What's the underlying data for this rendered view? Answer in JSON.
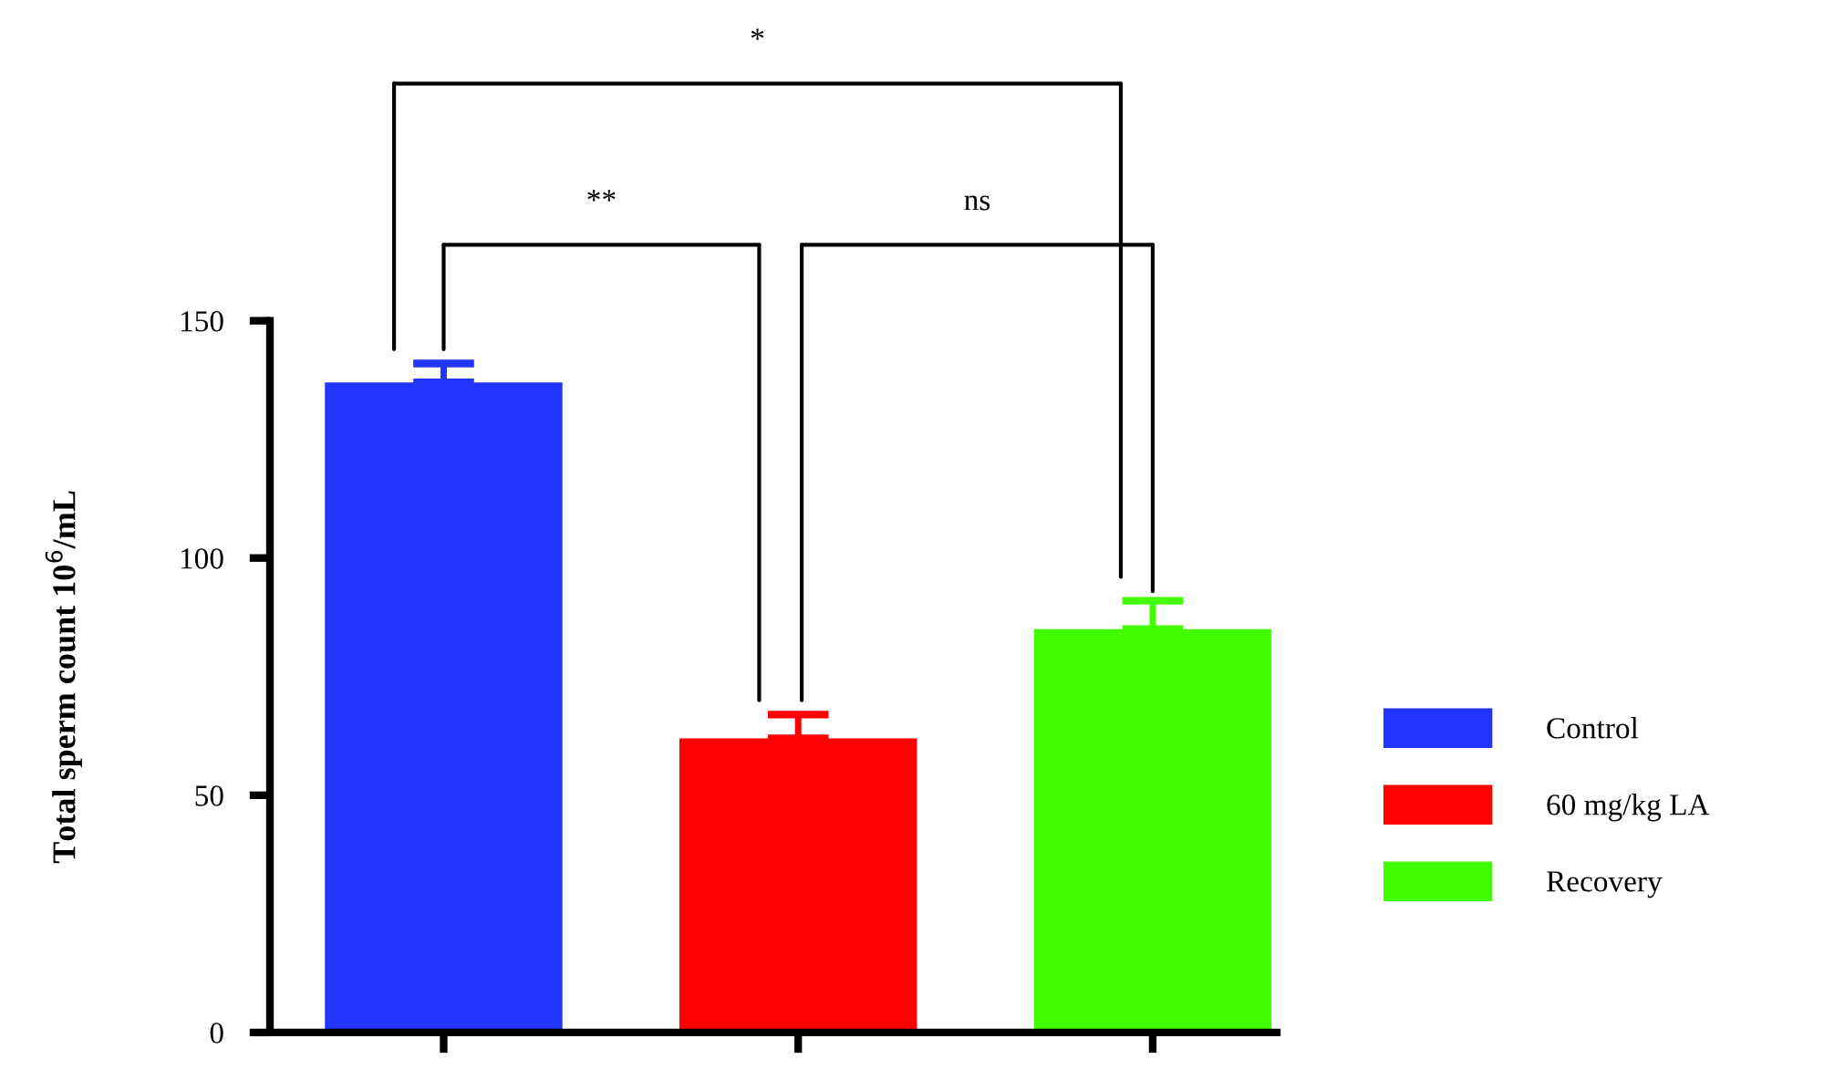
{
  "chart_data": {
    "type": "bar",
    "ylabel": "Total sperm count 10$^{6}$/mL",
    "categories": [
      null,
      null,
      null
    ],
    "series": [
      {
        "name": "Control",
        "color": "#2235ff",
        "values": [
          137,
          null,
          null
        ],
        "errors": [
          [
            137,
            141
          ],
          null,
          null
        ]
      },
      {
        "name": "60 mg/kg LA",
        "color": "#ff0000",
        "values": [
          null,
          62,
          null
        ],
        "errors": [
          null,
          [
            62,
            67
          ],
          null
        ]
      },
      {
        "name": "Recovery",
        "color": "#40ff00",
        "values": [
          null,
          null,
          85
        ],
        "errors": [
          null,
          null,
          [
            85,
            91
          ]
        ]
      }
    ],
    "ylim": [
      0,
      150
    ],
    "yticks": [
      0,
      50,
      100,
      150
    ],
    "grid": false,
    "legend": "right",
    "annotations": [
      "*",
      "**",
      "ns"
    ]
  }
}
